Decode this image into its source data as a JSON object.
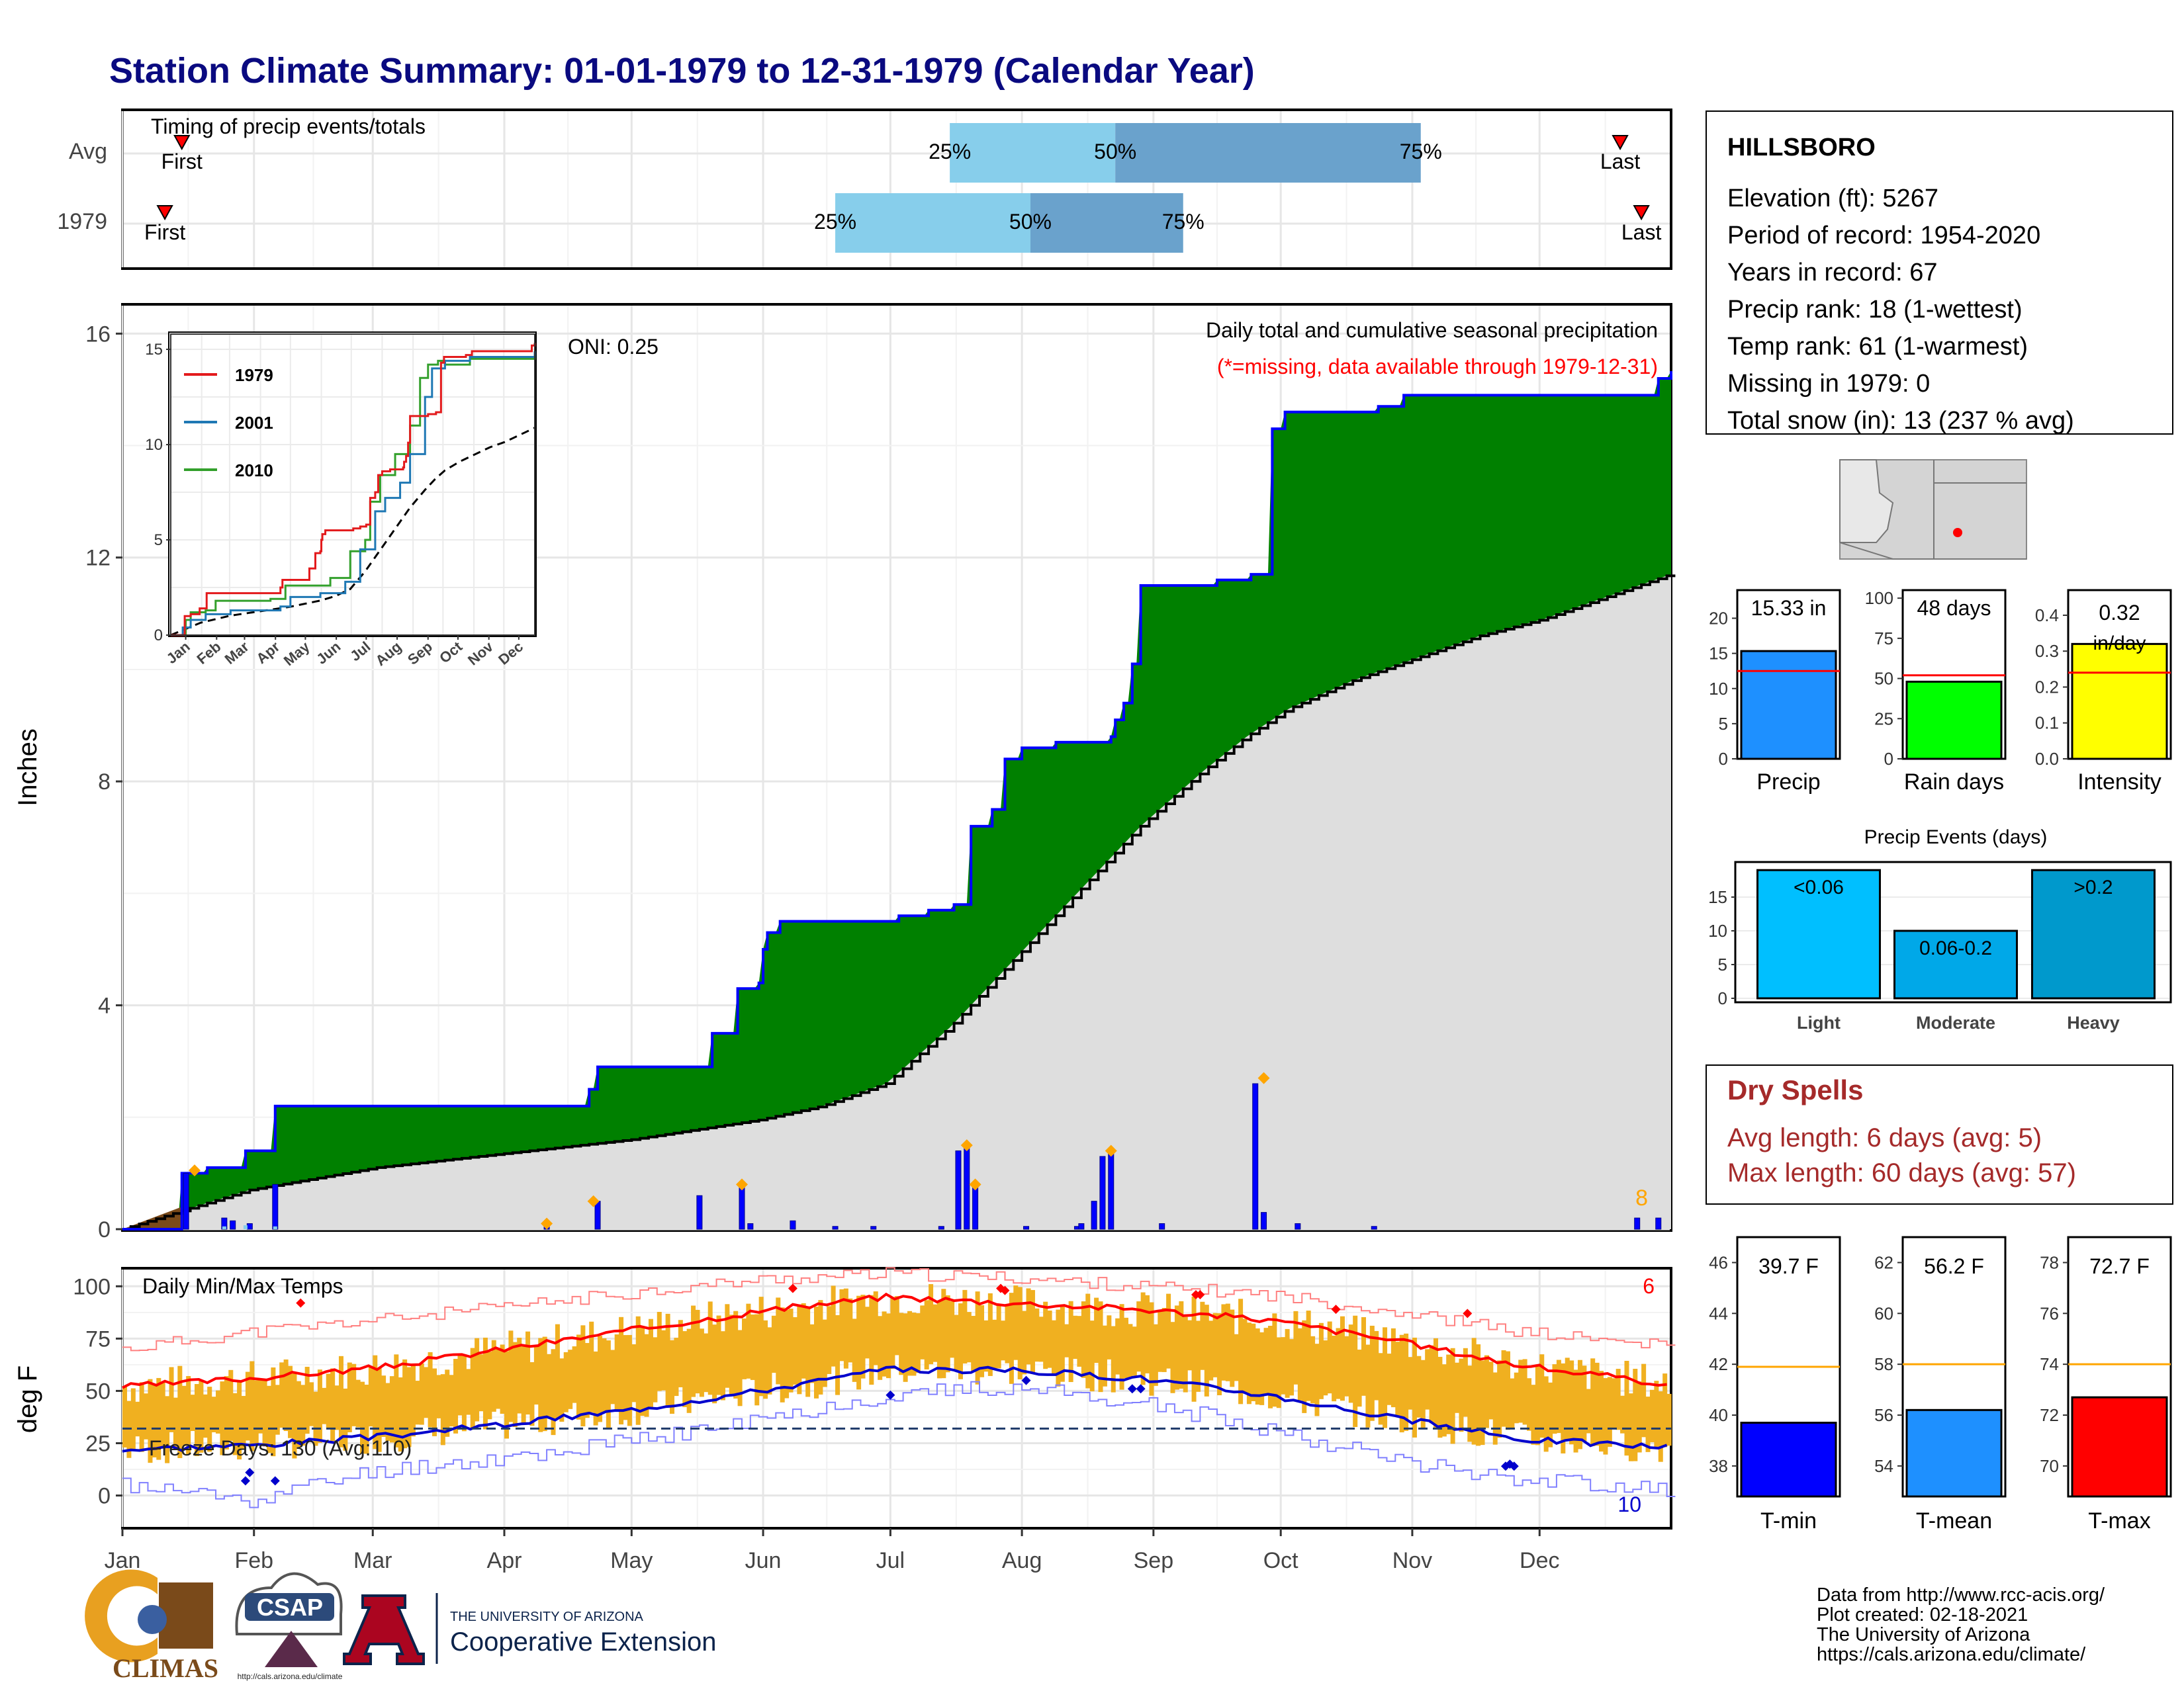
{
  "title": "Station Climate Summary: 01-01-1979 to 12-31-1979 (Calendar Year)",
  "colors": {
    "title": "#0a0a80",
    "q_light": "#87ceeb",
    "q_dark": "#6aa2cc",
    "green": "#008000",
    "blue_line": "#0000ff",
    "grey_fill": "#dedede",
    "orange": "#ffa500",
    "temp_bar": "#f0b020",
    "tmax_line": "#ff0000",
    "tmin_line": "#0000cc",
    "dry_spell": "#a52a2a"
  },
  "timing": {
    "label": "Timing of precip events/totals",
    "rows": [
      {
        "name": "Avg",
        "first_doy": 14,
        "q25_doy": 195,
        "q50_doy": 234,
        "q75_doy": 306,
        "last_doy": 353,
        "first_label": "First",
        "last_label": "Last",
        "q25_label": "25%",
        "q50_label": "50%",
        "q75_label": "75%"
      },
      {
        "name": "1979",
        "first_doy": 10,
        "q25_doy": 168,
        "q50_doy": 214,
        "q75_doy": 250,
        "last_doy": 358,
        "first_label": "First",
        "last_label": "Last",
        "q25_label": "25%",
        "q50_label": "50%",
        "q75_label": "75%"
      }
    ]
  },
  "precip_panel": {
    "ylabel": "Inches",
    "oni": "ONI: 0.25",
    "legend_title": "Daily total and cumulative seasonal precipitation",
    "legend_missing": "(*=missing, data available through 1979-12-31)",
    "snow_count": "8",
    "y_ticks": [
      "0",
      "4",
      "8",
      "12",
      "16"
    ]
  },
  "inset": {
    "series": [
      {
        "name": "1979",
        "color": "#e31a1c"
      },
      {
        "name": "2001",
        "color": "#1f78b4"
      },
      {
        "name": "2010",
        "color": "#33a02c"
      }
    ],
    "y_ticks": [
      "0",
      "5",
      "10",
      "15"
    ],
    "x_ticks": [
      "Jan",
      "Feb",
      "Mar",
      "Apr",
      "May",
      "Jun",
      "Jul",
      "Aug",
      "Sep",
      "Oct",
      "Nov",
      "Dec"
    ]
  },
  "temp_panel": {
    "ylabel": "deg F",
    "title": "Daily Min/Max Temps",
    "freeze_days": "Freeze Days: 130 (Avg:110)",
    "max_records": "6",
    "min_records": "10",
    "y_ticks": [
      "0",
      "25",
      "50",
      "75",
      "100"
    ],
    "x_ticks": [
      "Jan",
      "Feb",
      "Mar",
      "Apr",
      "May",
      "Jun",
      "Jul",
      "Aug",
      "Sep",
      "Oct",
      "Nov",
      "Dec"
    ]
  },
  "station": {
    "name": "HILLSBORO",
    "lines": [
      "Elevation (ft): 5267",
      "Period of record: 1954-2020",
      "Years in record: 67",
      "Precip rank: 18 (1-wettest)",
      "Temp rank: 61 (1-warmest)",
      "Missing in 1979: 0",
      "Total snow (in): 13 (237 % avg)"
    ]
  },
  "mini_bars": [
    {
      "label": "Precip",
      "value_text": "15.33 in",
      "value": 15.33,
      "avg": 12.5,
      "ymax": 24,
      "ticks": [
        "0",
        "5",
        "10",
        "15",
        "20"
      ],
      "tick_vals": [
        0,
        5,
        10,
        15,
        20
      ],
      "color": "#1e90ff"
    },
    {
      "label": "Rain days",
      "value_text": "48 days",
      "value": 48,
      "avg": 52,
      "ymax": 105,
      "ticks": [
        "0",
        "25",
        "50",
        "75",
        "100"
      ],
      "tick_vals": [
        0,
        25,
        50,
        75,
        100
      ],
      "color": "#00ff00"
    },
    {
      "label": "Intensity",
      "value_text": "0.32 in/day",
      "value": 0.32,
      "avg": 0.24,
      "ymax": 0.47,
      "ticks": [
        "0.0",
        "0.1",
        "0.2",
        "0.3",
        "0.4"
      ],
      "tick_vals": [
        0,
        0.1,
        0.2,
        0.3,
        0.4
      ],
      "color": "#ffff00"
    }
  ],
  "precip_events": {
    "title": "Precip Events (days)",
    "ticks": [
      "0",
      "5",
      "10",
      "15"
    ],
    "bars": [
      {
        "label": "Light",
        "text": "<0.06",
        "value": 19,
        "color": "#00bfff"
      },
      {
        "label": "Moderate",
        "text": "0.06-0.2",
        "value": 10,
        "color": "#00a8e8"
      },
      {
        "label": "Heavy",
        "text": ">0.2",
        "value": 19,
        "color": "#0099cc"
      }
    ]
  },
  "dry_spells": {
    "title": "Dry Spells",
    "avg_line": "Avg length: 6 days (avg: 5)",
    "max_line": "Max length: 60 days (avg: 57)"
  },
  "temp_bars": [
    {
      "label": "T-min",
      "value_text": "39.7 F",
      "value": 39.7,
      "avg": 41.9,
      "ymin": 36.8,
      "ymax": 47,
      "ticks": [
        "38",
        "40",
        "42",
        "44",
        "46"
      ],
      "tick_vals": [
        38,
        40,
        42,
        44,
        46
      ],
      "color": "#0000ff"
    },
    {
      "label": "T-mean",
      "value_text": "56.2 F",
      "value": 56.2,
      "avg": 58,
      "ymin": 52.8,
      "ymax": 63,
      "ticks": [
        "54",
        "56",
        "58",
        "60",
        "62"
      ],
      "tick_vals": [
        54,
        56,
        58,
        60,
        62
      ],
      "color": "#1e90ff"
    },
    {
      "label": "T-max",
      "value_text": "72.7 F",
      "value": 72.7,
      "avg": 74,
      "ymin": 68.8,
      "ymax": 79,
      "ticks": [
        "70",
        "72",
        "74",
        "76",
        "78"
      ],
      "tick_vals": [
        70,
        72,
        74,
        76,
        78
      ],
      "color": "#ff0000"
    }
  ],
  "footer": {
    "climas": "CLIMAS",
    "csap": "CSAP",
    "csap_url": "http://cals.arizona.edu/climate",
    "ua_small": "THE UNIVERSITY OF ARIZONA",
    "ua_big": "Cooperative Extension",
    "credits": [
      "Data from http://www.rcc-acis.org/",
      "Plot created: 02-18-2021",
      "The University of Arizona",
      "https://cals.arizona.edu/climate/"
    ]
  },
  "chart_data": [
    {
      "type": "area",
      "title": "Daily total and cumulative seasonal precipitation",
      "ylabel": "Inches",
      "ylim": [
        0,
        16.5
      ],
      "cumulative_1979": [
        [
          0,
          0
        ],
        [
          14,
          1.0
        ],
        [
          20,
          1.1
        ],
        [
          29,
          1.4
        ],
        [
          35,
          1.4
        ],
        [
          36,
          2.2
        ],
        [
          100,
          2.2
        ],
        [
          110,
          2.5
        ],
        [
          112,
          2.9
        ],
        [
          138,
          2.9
        ],
        [
          139,
          3.5
        ],
        [
          145,
          4.3
        ],
        [
          150,
          4.4
        ],
        [
          151,
          5.0
        ],
        [
          152,
          5.3
        ],
        [
          155,
          5.5
        ],
        [
          182,
          5.5
        ],
        [
          183,
          5.6
        ],
        [
          190,
          5.7
        ],
        [
          196,
          5.8
        ],
        [
          200,
          7.2
        ],
        [
          205,
          7.5
        ],
        [
          208,
          8.4
        ],
        [
          212,
          8.6
        ],
        [
          220,
          8.7
        ],
        [
          228,
          8.7
        ],
        [
          233,
          8.8
        ],
        [
          234,
          9.1
        ],
        [
          236,
          9.4
        ],
        [
          238,
          10.1
        ],
        [
          240,
          11.5
        ],
        [
          252,
          11.5
        ],
        [
          258,
          11.6
        ],
        [
          266,
          11.7
        ],
        [
          271,
          14.3
        ],
        [
          274,
          14.6
        ],
        [
          296,
          14.7
        ],
        [
          302,
          14.9
        ],
        [
          360,
          14.9
        ],
        [
          362,
          15.2
        ],
        [
          365,
          15.33
        ]
      ],
      "cumulative_avg": [
        [
          0,
          0
        ],
        [
          30,
          0.7
        ],
        [
          60,
          1.1
        ],
        [
          90,
          1.35
        ],
        [
          120,
          1.6
        ],
        [
          150,
          1.95
        ],
        [
          165,
          2.2
        ],
        [
          180,
          2.6
        ],
        [
          195,
          3.6
        ],
        [
          210,
          4.8
        ],
        [
          225,
          6.0
        ],
        [
          240,
          7.2
        ],
        [
          255,
          8.2
        ],
        [
          265,
          8.8
        ],
        [
          275,
          9.3
        ],
        [
          290,
          9.8
        ],
        [
          305,
          10.2
        ],
        [
          320,
          10.6
        ],
        [
          335,
          10.9
        ],
        [
          350,
          11.3
        ],
        [
          365,
          11.7
        ]
      ],
      "daily_bars": [
        [
          15,
          1.0
        ],
        [
          24,
          0.2
        ],
        [
          26,
          0.15
        ],
        [
          30,
          0.1
        ],
        [
          36,
          0.8
        ],
        [
          100,
          0.05
        ],
        [
          112,
          0.5
        ],
        [
          136,
          0.6
        ],
        [
          146,
          0.8
        ],
        [
          148,
          0.1
        ],
        [
          158,
          0.15
        ],
        [
          168,
          0.05
        ],
        [
          177,
          0.05
        ],
        [
          193,
          0.05
        ],
        [
          197,
          1.4
        ],
        [
          199,
          1.5
        ],
        [
          201,
          0.8
        ],
        [
          213,
          0.05
        ],
        [
          225,
          0.05
        ],
        [
          226,
          0.1
        ],
        [
          229,
          0.5
        ],
        [
          231,
          1.3
        ],
        [
          233,
          1.4
        ],
        [
          245,
          0.1
        ],
        [
          267,
          2.6
        ],
        [
          269,
          0.3
        ],
        [
          277,
          0.1
        ],
        [
          295,
          0.05
        ],
        [
          357,
          0.2
        ],
        [
          362,
          0.2
        ]
      ],
      "max_markers": [
        [
          17,
          1.05
        ],
        [
          100,
          0.1
        ],
        [
          111,
          0.5
        ],
        [
          146,
          0.8
        ],
        [
          199,
          1.5
        ],
        [
          201,
          0.8
        ],
        [
          233,
          1.4
        ],
        [
          269,
          2.7
        ]
      ]
    },
    {
      "type": "line",
      "title": "Daily Min/Max Temps",
      "ylabel": "deg F",
      "ylim": [
        -15,
        108
      ],
      "avg_tmax": [
        [
          0,
          52
        ],
        [
          30,
          56
        ],
        [
          60,
          61
        ],
        [
          90,
          70
        ],
        [
          120,
          79
        ],
        [
          150,
          88
        ],
        [
          180,
          95
        ],
        [
          210,
          92
        ],
        [
          240,
          89
        ],
        [
          270,
          84
        ],
        [
          300,
          74
        ],
        [
          330,
          62
        ],
        [
          365,
          53
        ]
      ],
      "avg_tmin": [
        [
          0,
          22
        ],
        [
          30,
          24
        ],
        [
          60,
          28
        ],
        [
          90,
          34
        ],
        [
          120,
          41
        ],
        [
          150,
          50
        ],
        [
          180,
          60
        ],
        [
          210,
          60
        ],
        [
          240,
          56
        ],
        [
          270,
          48
        ],
        [
          300,
          37
        ],
        [
          330,
          27
        ],
        [
          365,
          23
        ]
      ],
      "record_max": [
        [
          0,
          70
        ],
        [
          30,
          78
        ],
        [
          60,
          84
        ],
        [
          90,
          90
        ],
        [
          120,
          97
        ],
        [
          150,
          103
        ],
        [
          180,
          106
        ],
        [
          210,
          104
        ],
        [
          240,
          100
        ],
        [
          270,
          96
        ],
        [
          300,
          88
        ],
        [
          330,
          78
        ],
        [
          365,
          71
        ]
      ],
      "record_min": [
        [
          0,
          5
        ],
        [
          30,
          -2
        ],
        [
          60,
          12
        ],
        [
          90,
          18
        ],
        [
          120,
          26
        ],
        [
          150,
          36
        ],
        [
          180,
          48
        ],
        [
          210,
          52
        ],
        [
          240,
          44
        ],
        [
          270,
          32
        ],
        [
          300,
          17
        ],
        [
          330,
          8
        ],
        [
          365,
          3
        ]
      ],
      "freeze_threshold": 32
    }
  ]
}
